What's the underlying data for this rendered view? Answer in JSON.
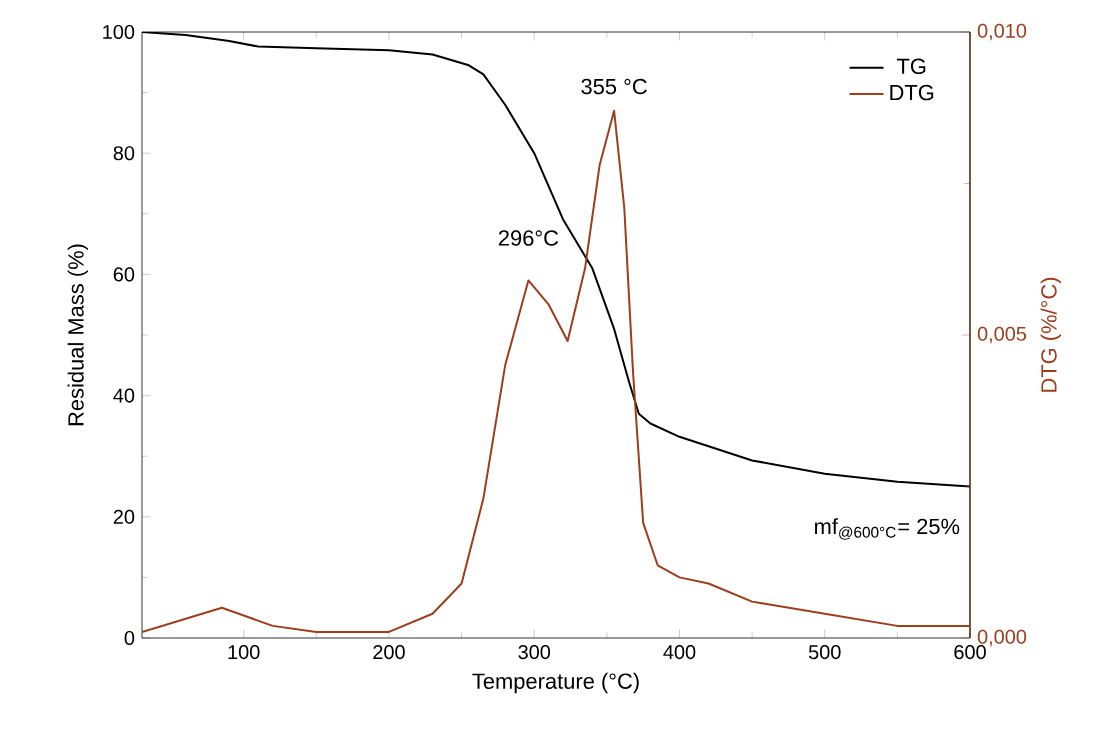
{
  "chart_data": {
    "type": "line",
    "xlabel": "Temperature (°C)",
    "ylabel": "Residual Mass (%)",
    "y2label": "DTG (%/°C)",
    "xlim": [
      30,
      600
    ],
    "xticks": [
      100,
      200,
      300,
      400,
      500,
      600
    ],
    "ylim": [
      0,
      100
    ],
    "yticks": [
      0,
      20,
      40,
      60,
      80,
      100
    ],
    "y2lim": [
      0,
      0.01
    ],
    "y2ticks": [
      {
        "value": 0,
        "label": "0,000"
      },
      {
        "value": 0.005,
        "label": "0,005"
      },
      {
        "value": 0.01,
        "label": "0,010"
      }
    ],
    "legend": "top right",
    "grid": false,
    "series": [
      {
        "name": "TG",
        "color": "#000000",
        "x": [
          30,
          60,
          90,
          110,
          150,
          200,
          230,
          255,
          265,
          280,
          300,
          320,
          340,
          355,
          365,
          372,
          380,
          400,
          450,
          500,
          550,
          600
        ],
        "values": [
          100,
          99.5,
          98.5,
          97.6,
          97.3,
          97,
          96.3,
          94.5,
          93,
          88,
          80,
          69,
          61,
          51,
          42.5,
          37,
          35.4,
          33.2,
          29.3,
          27.1,
          25.8,
          25
        ]
      },
      {
        "name": "DTG",
        "color": "#9c3d1c",
        "axis": "y2",
        "x": [
          30,
          85,
          120,
          150,
          200,
          230,
          250,
          265,
          280,
          296,
          310,
          323,
          335,
          345,
          355,
          362,
          368,
          375,
          385,
          400,
          420,
          450,
          500,
          550,
          600
        ],
        "values": [
          0.0001,
          0.0005,
          0.0002,
          0.0001,
          0.0001,
          0.0004,
          0.0009,
          0.0023,
          0.0045,
          0.0059,
          0.0055,
          0.0049,
          0.0061,
          0.0078,
          0.0087,
          0.0071,
          0.0044,
          0.0019,
          0.0012,
          0.001,
          0.0009,
          0.0006,
          0.0004,
          0.0002,
          0.0002
        ]
      }
    ],
    "annotations": [
      "296°C",
      "355 °C",
      "mf$_{@600°C}$= 25%"
    ]
  }
}
